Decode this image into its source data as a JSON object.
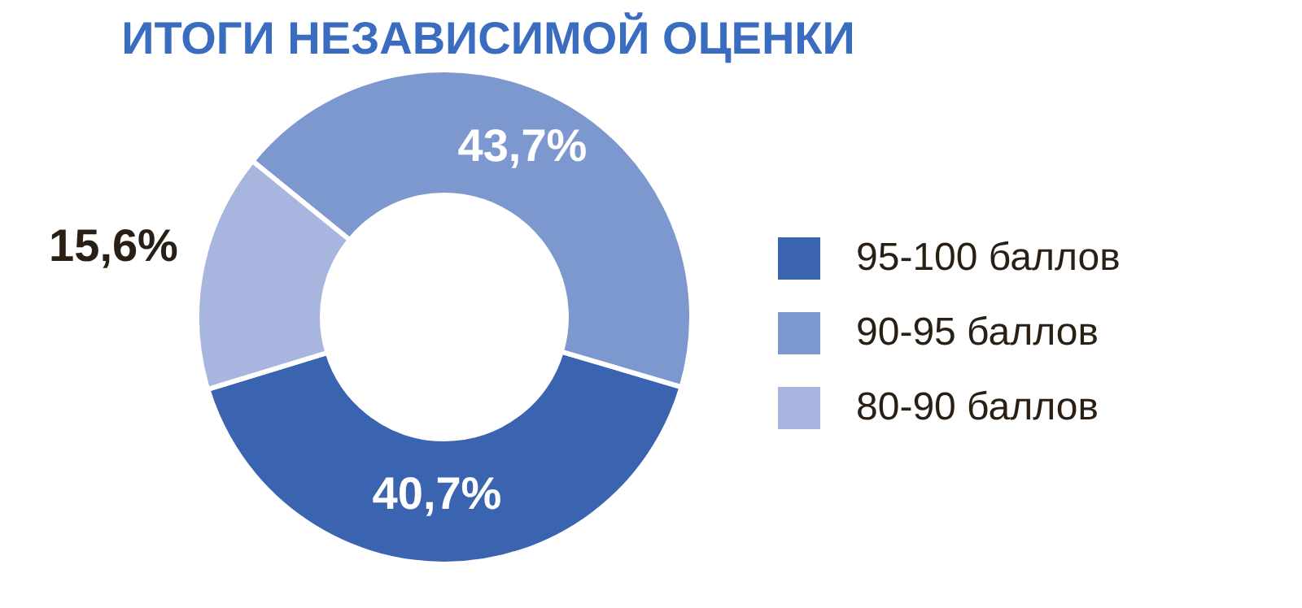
{
  "chart_data": {
    "type": "donut",
    "title": "ИТОГИ НЕЗАВИСИМОЙ ОЦЕНКИ",
    "categories": [
      "95-100 баллов",
      "90-95 баллов",
      "80-90 баллов"
    ],
    "values": [
      40.7,
      43.7,
      15.6
    ],
    "value_labels": [
      "40,7%",
      "43,7%",
      "15,6%"
    ],
    "colors": [
      "#3a64b0",
      "#7d97cf",
      "#a8b5de"
    ],
    "legend": "right"
  }
}
